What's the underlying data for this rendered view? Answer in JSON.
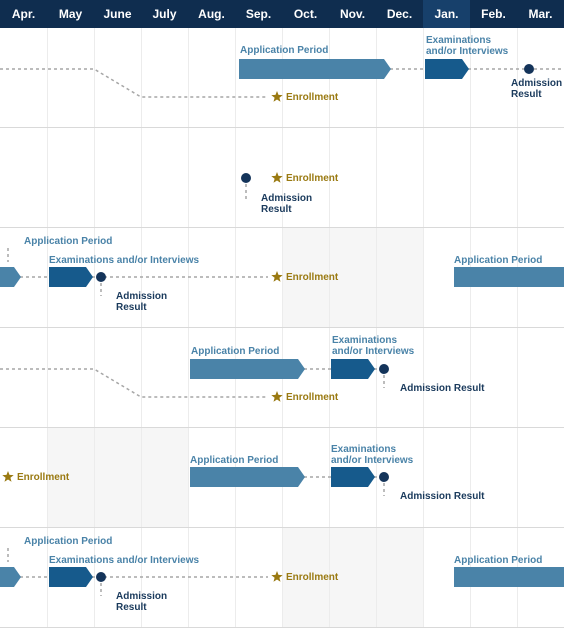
{
  "months": [
    "Apr.",
    "May",
    "June",
    "July",
    "Aug.",
    "Sep.",
    "Oct.",
    "Nov.",
    "Dec.",
    "Jan.",
    "Feb.",
    "Mar."
  ],
  "labels": {
    "application_period": "Application Period",
    "examinations_two_line_1": "Examinations",
    "examinations_two_line_2": "and/or Interviews",
    "examinations_one_line": "Examinations and/or Interviews",
    "enrollment": "Enrollment",
    "admission_result_1": "Admission",
    "admission_result_2": "Result",
    "admission_result_one_line": "Admission Result"
  },
  "colors": {
    "header_bg": "#0f2d4f",
    "header_highlight": "#17406b",
    "application_bar": "#4a83a8",
    "exam_bar": "#165a8c",
    "milestone_dot": "#14345a",
    "enrollment_star": "#9a7a12",
    "dotted_line": "#a6a6a6",
    "row_divider": "#d9d9d9",
    "shade": "#f6f6f6"
  }
}
